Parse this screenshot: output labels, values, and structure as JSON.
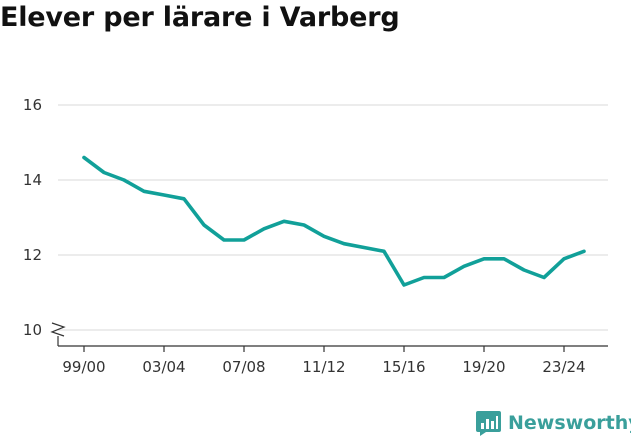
{
  "chart_data": {
    "type": "line",
    "title": "Elever per lärare i Varberg",
    "xlabel": "",
    "ylabel": "",
    "ylim": [
      10,
      16
    ],
    "yticks": [
      10,
      12,
      14,
      16
    ],
    "ytick_labels": [
      "10",
      "12",
      "14",
      "16"
    ],
    "axis_break": true,
    "grid": true,
    "categories": [
      "99/00",
      "00/01",
      "01/02",
      "02/03",
      "03/04",
      "04/05",
      "05/06",
      "06/07",
      "07/08",
      "08/09",
      "09/10",
      "10/11",
      "11/12",
      "12/13",
      "13/14",
      "14/15",
      "15/16",
      "16/17",
      "17/18",
      "18/19",
      "19/20",
      "20/21",
      "21/22",
      "22/23",
      "23/24",
      "24/25"
    ],
    "x_tick_labels": [
      "99/00",
      "03/04",
      "07/08",
      "11/12",
      "15/16",
      "19/20",
      "23/24"
    ],
    "series": [
      {
        "name": "Elever per lärare",
        "color": "#11a099",
        "values": [
          14.6,
          14.2,
          14.0,
          13.7,
          13.6,
          13.5,
          12.8,
          12.4,
          12.4,
          12.7,
          12.9,
          12.8,
          12.5,
          12.3,
          12.2,
          12.1,
          11.2,
          11.4,
          11.4,
          11.7,
          11.9,
          11.9,
          11.6,
          11.4,
          11.9,
          12.1
        ]
      }
    ]
  },
  "brand": {
    "name": "Newsworthy",
    "color": "#3a9f9b",
    "icon": "newsworthy-logo-icon"
  }
}
